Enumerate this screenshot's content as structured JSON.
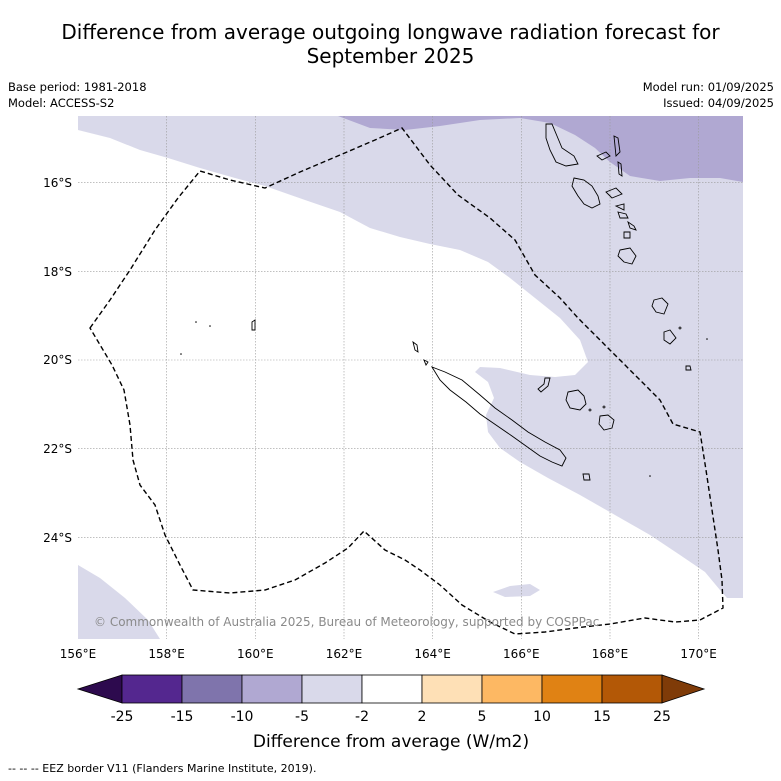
{
  "title_line1": "Difference from average outgoing longwave radiation forecast for",
  "title_line2": "September 2025",
  "base_period": "Base period: 1981-2018",
  "model": "Model: ACCESS-S2",
  "model_run": "Model run: 01/09/2025",
  "issued": "Issued: 04/09/2025",
  "copyright": "© Commonwealth of Australia 2025, Bureau of Meteorology, supported by COSPPac",
  "x_ticks": [
    "156°E",
    "158°E",
    "160°E",
    "162°E",
    "164°E",
    "166°E",
    "168°E",
    "170°E"
  ],
  "y_ticks": [
    "16°S",
    "18°S",
    "20°S",
    "22°S",
    "24°S"
  ],
  "colorbar": {
    "title": "Difference from average (W/m2)",
    "tick_labels": [
      "-25",
      "-15",
      "-10",
      "-5",
      "-2",
      "2",
      "5",
      "10",
      "15",
      "25"
    ],
    "colors": [
      "#2d0a4e",
      "#54278f",
      "#7f74ac",
      "#b0a8d2",
      "#d9d9ea",
      "#ffffff",
      "#fee0b6",
      "#fdb863",
      "#e08214",
      "#b35806",
      "#7f3b08"
    ]
  },
  "footnote": "-- -- -- EEZ border V11 (Flanders Marine Institute, 2019).",
  "chart_data": {
    "type": "heatmap",
    "title": "Difference from average outgoing longwave radiation forecast for September 2025",
    "xlabel": "",
    "ylabel": "",
    "x_range_lon": [
      156.0,
      171.0
    ],
    "y_range_lat": [
      -14.5,
      -26.0
    ],
    "units": "W/m2",
    "levels": [
      -25,
      -15,
      -10,
      -5,
      -2,
      2,
      5,
      10,
      15,
      25
    ],
    "regions": [
      {
        "category": "-5 to -2",
        "color": "#d9d9ea",
        "extent": "northern and eastern parts of map, east of New Caledonia"
      },
      {
        "category": "-10 to -5",
        "color": "#b0a8d2",
        "extent": "far north-east corner near Vanuatu"
      },
      {
        "category": "-2 to 2",
        "color": "#ffffff",
        "extent": "central and south-western area including New Caledonia EEZ"
      }
    ],
    "grid": true
  }
}
